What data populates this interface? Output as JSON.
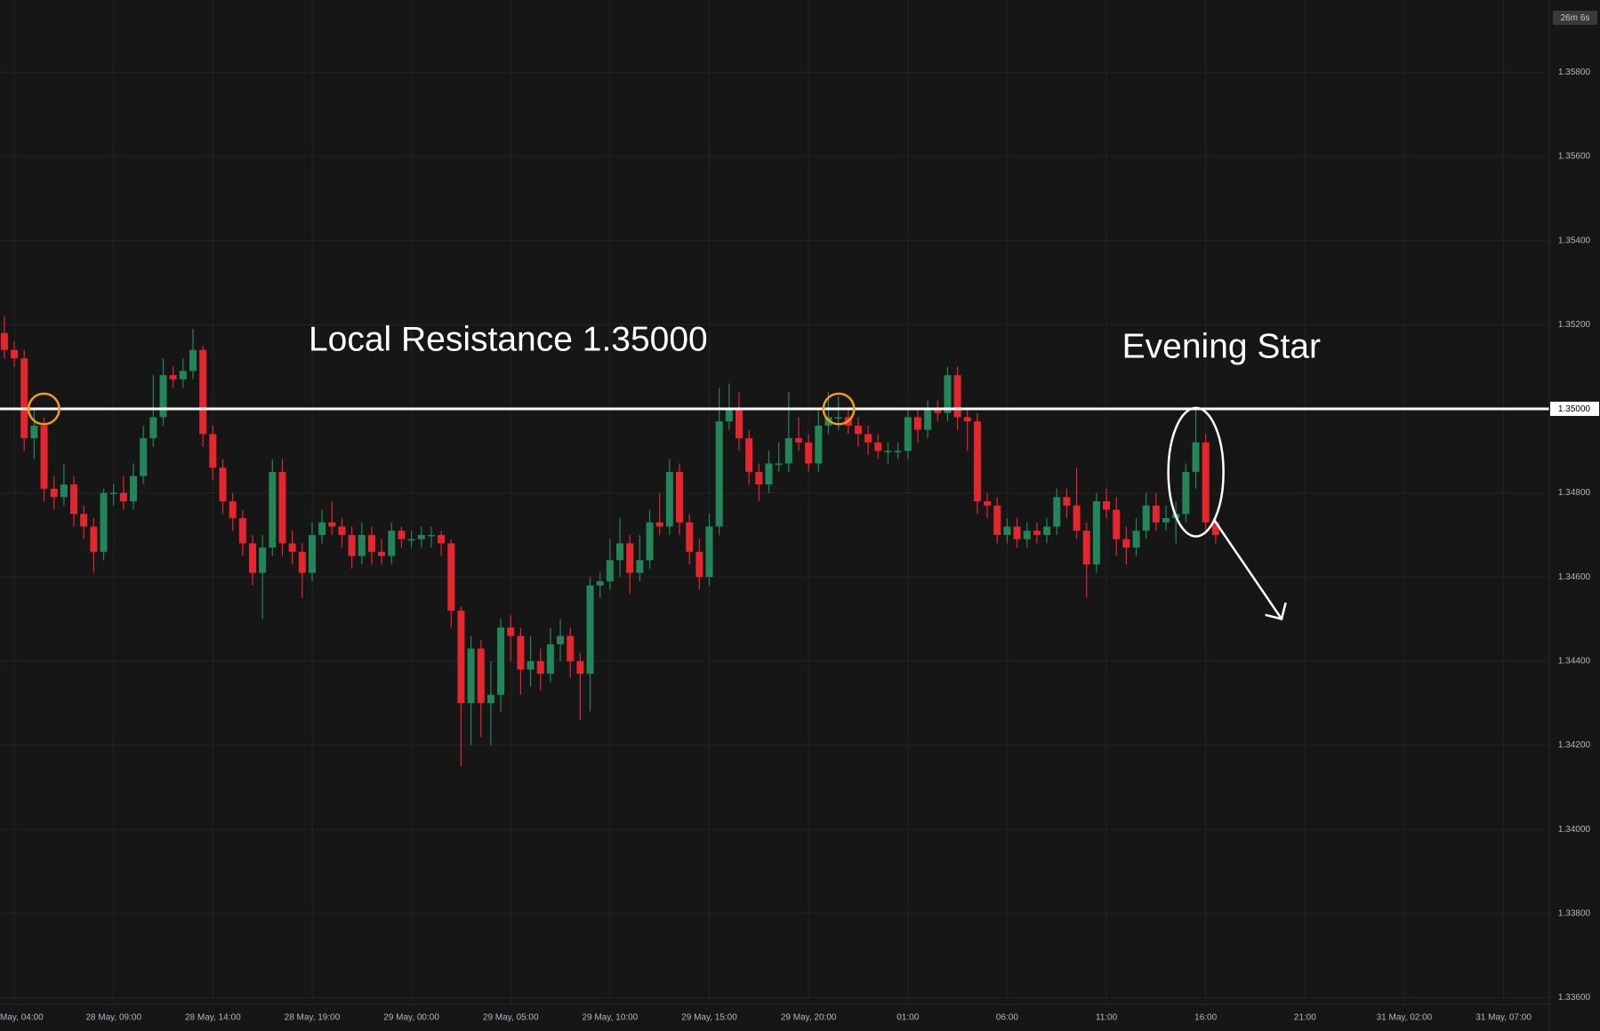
{
  "chart_data": {
    "type": "candlestick",
    "timer": "26m 6s",
    "annotations": [
      "Local Resistance 1.35000",
      "Evening Star"
    ],
    "resistance": {
      "value": 1.35,
      "label": "1.35000"
    },
    "up_color": "#22865a",
    "down_color": "#e5262f",
    "ylim": [
      1.33584,
      1.35972
    ],
    "yticks": [
      {
        "value": 1.336,
        "label": "1.33600"
      },
      {
        "value": 1.338,
        "label": "1.33800"
      },
      {
        "value": 1.34,
        "label": "1.34000"
      },
      {
        "value": 1.342,
        "label": "1.34200"
      },
      {
        "value": 1.344,
        "label": "1.34400"
      },
      {
        "value": 1.346,
        "label": "1.34600"
      },
      {
        "value": 1.348,
        "label": "1.34800"
      },
      {
        "value": 1.35,
        "label": "1.35000"
      },
      {
        "value": 1.352,
        "label": "1.35200"
      },
      {
        "value": 1.354,
        "label": "1.35400"
      },
      {
        "value": 1.356,
        "label": "1.35600"
      },
      {
        "value": 1.358,
        "label": "1.35800"
      }
    ],
    "xticks": [
      "May, 04:00",
      "28 May, 09:00",
      "28 May, 14:00",
      "28 May, 19:00",
      "29 May, 00:00",
      "29 May, 05:00",
      "29 May, 10:00",
      "29 May, 15:00",
      "29 May, 20:00",
      "01:00",
      "06:00",
      "11:00",
      "16:00",
      "21:00",
      "31 May, 02:00",
      "31 May, 07:00"
    ],
    "grid": true,
    "ohlc": [
      [
        1.3518,
        1.3522,
        1.3512,
        1.3514
      ],
      [
        1.3514,
        1.3516,
        1.351,
        1.3512
      ],
      [
        1.3512,
        1.3514,
        1.349,
        1.3493
      ],
      [
        1.3493,
        1.35,
        1.3488,
        1.3496
      ],
      [
        1.3496,
        1.3498,
        1.3478,
        1.3481
      ],
      [
        1.3481,
        1.3484,
        1.3476,
        1.3479
      ],
      [
        1.3479,
        1.3487,
        1.3477,
        1.3482
      ],
      [
        1.3482,
        1.3484,
        1.3472,
        1.3475
      ],
      [
        1.3475,
        1.3477,
        1.3469,
        1.3472
      ],
      [
        1.3472,
        1.3474,
        1.3461,
        1.3466
      ],
      [
        1.3466,
        1.3481,
        1.3464,
        1.348
      ],
      [
        1.348,
        1.3482,
        1.3477,
        1.348
      ],
      [
        1.348,
        1.3484,
        1.3476,
        1.3478
      ],
      [
        1.3478,
        1.3487,
        1.3476,
        1.3484
      ],
      [
        1.3484,
        1.3496,
        1.3482,
        1.3493
      ],
      [
        1.3493,
        1.3508,
        1.3491,
        1.3498
      ],
      [
        1.3498,
        1.3512,
        1.3496,
        1.3508
      ],
      [
        1.3508,
        1.351,
        1.3505,
        1.3507
      ],
      [
        1.3507,
        1.3512,
        1.3505,
        1.3509
      ],
      [
        1.3509,
        1.3519,
        1.3507,
        1.3514
      ],
      [
        1.3514,
        1.3515,
        1.3491,
        1.3494
      ],
      [
        1.3494,
        1.3496,
        1.3483,
        1.3486
      ],
      [
        1.3486,
        1.3488,
        1.3475,
        1.3478
      ],
      [
        1.3478,
        1.348,
        1.3471,
        1.3474
      ],
      [
        1.3474,
        1.3476,
        1.3465,
        1.3468
      ],
      [
        1.3468,
        1.347,
        1.3458,
        1.3461
      ],
      [
        1.3461,
        1.347,
        1.345,
        1.3467
      ],
      [
        1.3467,
        1.3488,
        1.3465,
        1.3485
      ],
      [
        1.3485,
        1.3488,
        1.3465,
        1.3468
      ],
      [
        1.3468,
        1.3471,
        1.3463,
        1.3466
      ],
      [
        1.3466,
        1.3468,
        1.3455,
        1.3461
      ],
      [
        1.3461,
        1.3473,
        1.3459,
        1.347
      ],
      [
        1.347,
        1.3476,
        1.3468,
        1.3473
      ],
      [
        1.3473,
        1.3478,
        1.347,
        1.3472
      ],
      [
        1.3472,
        1.3474,
        1.3467,
        1.347
      ],
      [
        1.347,
        1.3472,
        1.3462,
        1.3465
      ],
      [
        1.3465,
        1.3473,
        1.3463,
        1.347
      ],
      [
        1.347,
        1.3472,
        1.3463,
        1.3466
      ],
      [
        1.3466,
        1.3469,
        1.3463,
        1.3465
      ],
      [
        1.3465,
        1.3473,
        1.3463,
        1.3471
      ],
      [
        1.3471,
        1.3472,
        1.3467,
        1.3469
      ],
      [
        1.3469,
        1.3471,
        1.3467,
        1.3469
      ],
      [
        1.3469,
        1.3472,
        1.3467,
        1.347
      ],
      [
        1.347,
        1.3472,
        1.3467,
        1.347
      ],
      [
        1.347,
        1.3471,
        1.3465,
        1.3468
      ],
      [
        1.3468,
        1.3469,
        1.3448,
        1.3452
      ],
      [
        1.3452,
        1.3453,
        1.3415,
        1.343
      ],
      [
        1.343,
        1.3446,
        1.342,
        1.3443
      ],
      [
        1.3443,
        1.3445,
        1.3422,
        1.343
      ],
      [
        1.343,
        1.344,
        1.342,
        1.3432
      ],
      [
        1.3432,
        1.345,
        1.3428,
        1.3448
      ],
      [
        1.3448,
        1.3451,
        1.344,
        1.3446
      ],
      [
        1.3446,
        1.3448,
        1.3432,
        1.3438
      ],
      [
        1.3438,
        1.3446,
        1.3434,
        1.344
      ],
      [
        1.344,
        1.3443,
        1.3433,
        1.3437
      ],
      [
        1.3437,
        1.3448,
        1.3435,
        1.3444
      ],
      [
        1.3444,
        1.345,
        1.344,
        1.3446
      ],
      [
        1.3446,
        1.3448,
        1.3436,
        1.344
      ],
      [
        1.344,
        1.3442,
        1.3426,
        1.3437
      ],
      [
        1.3437,
        1.346,
        1.3428,
        1.3458
      ],
      [
        1.3458,
        1.3461,
        1.3455,
        1.3459
      ],
      [
        1.3459,
        1.3469,
        1.3457,
        1.3464
      ],
      [
        1.3464,
        1.3474,
        1.346,
        1.3468
      ],
      [
        1.3468,
        1.347,
        1.3456,
        1.3461
      ],
      [
        1.3461,
        1.347,
        1.3459,
        1.3464
      ],
      [
        1.3464,
        1.3476,
        1.3462,
        1.3473
      ],
      [
        1.3473,
        1.348,
        1.347,
        1.3472
      ],
      [
        1.3472,
        1.3488,
        1.347,
        1.3485
      ],
      [
        1.3485,
        1.3487,
        1.347,
        1.3473
      ],
      [
        1.3473,
        1.3475,
        1.3463,
        1.3466
      ],
      [
        1.3466,
        1.3469,
        1.3457,
        1.346
      ],
      [
        1.346,
        1.3475,
        1.3458,
        1.3472
      ],
      [
        1.3472,
        1.3505,
        1.347,
        1.3497
      ],
      [
        1.3497,
        1.3506,
        1.3495,
        1.35
      ],
      [
        1.35,
        1.3504,
        1.349,
        1.3493
      ],
      [
        1.3493,
        1.3495,
        1.3482,
        1.3485
      ],
      [
        1.3485,
        1.3487,
        1.3478,
        1.3482
      ],
      [
        1.3482,
        1.349,
        1.348,
        1.3487
      ],
      [
        1.3487,
        1.3492,
        1.3485,
        1.3487
      ],
      [
        1.3487,
        1.3504,
        1.3485,
        1.3493
      ],
      [
        1.3493,
        1.3498,
        1.349,
        1.3492
      ],
      [
        1.3492,
        1.3494,
        1.3485,
        1.3487
      ],
      [
        1.3487,
        1.35,
        1.3485,
        1.3496
      ],
      [
        1.3496,
        1.3504,
        1.3494,
        1.3498
      ],
      [
        1.3498,
        1.3503,
        1.3495,
        1.3498
      ],
      [
        1.3498,
        1.35,
        1.3494,
        1.3496
      ],
      [
        1.3496,
        1.3498,
        1.3491,
        1.3494
      ],
      [
        1.3494,
        1.3496,
        1.3489,
        1.3492
      ],
      [
        1.3492,
        1.3494,
        1.3488,
        1.349
      ],
      [
        1.349,
        1.3492,
        1.3487,
        1.349
      ],
      [
        1.349,
        1.3492,
        1.3488,
        1.349
      ],
      [
        1.349,
        1.35,
        1.3488,
        1.3498
      ],
      [
        1.3498,
        1.35,
        1.3492,
        1.3495
      ],
      [
        1.3495,
        1.3502,
        1.3493,
        1.35
      ],
      [
        1.35,
        1.3502,
        1.3497,
        1.3499
      ],
      [
        1.3499,
        1.351,
        1.3497,
        1.3508
      ],
      [
        1.3508,
        1.351,
        1.3495,
        1.3498
      ],
      [
        1.3498,
        1.35,
        1.349,
        1.3497
      ],
      [
        1.3497,
        1.3499,
        1.3475,
        1.3478
      ],
      [
        1.3478,
        1.348,
        1.3474,
        1.3477
      ],
      [
        1.3477,
        1.3479,
        1.3468,
        1.347
      ],
      [
        1.347,
        1.3474,
        1.3468,
        1.3472
      ],
      [
        1.3472,
        1.3474,
        1.3467,
        1.3469
      ],
      [
        1.3469,
        1.3473,
        1.3467,
        1.3471
      ],
      [
        1.3471,
        1.3473,
        1.3468,
        1.347
      ],
      [
        1.347,
        1.3474,
        1.3468,
        1.3472
      ],
      [
        1.3472,
        1.3481,
        1.347,
        1.3479
      ],
      [
        1.3479,
        1.3481,
        1.3474,
        1.3477
      ],
      [
        1.3477,
        1.3486,
        1.3469,
        1.3471
      ],
      [
        1.3471,
        1.3473,
        1.3455,
        1.3463
      ],
      [
        1.3463,
        1.348,
        1.3461,
        1.3478
      ],
      [
        1.3478,
        1.3481,
        1.3474,
        1.3476
      ],
      [
        1.3476,
        1.3479,
        1.3465,
        1.3469
      ],
      [
        1.3469,
        1.3472,
        1.3463,
        1.3467
      ],
      [
        1.3467,
        1.3474,
        1.3465,
        1.3471
      ],
      [
        1.3471,
        1.348,
        1.3469,
        1.3477
      ],
      [
        1.3477,
        1.348,
        1.3471,
        1.3473
      ],
      [
        1.3473,
        1.3477,
        1.3471,
        1.3474
      ],
      [
        1.3474,
        1.3478,
        1.3468,
        1.3475
      ],
      [
        1.3475,
        1.3487,
        1.3473,
        1.3485
      ],
      [
        1.3485,
        1.35,
        1.3481,
        1.3492
      ],
      [
        1.3492,
        1.3494,
        1.3471,
        1.3473
      ],
      [
        1.3473,
        1.3474,
        1.3468,
        1.347
      ]
    ]
  }
}
